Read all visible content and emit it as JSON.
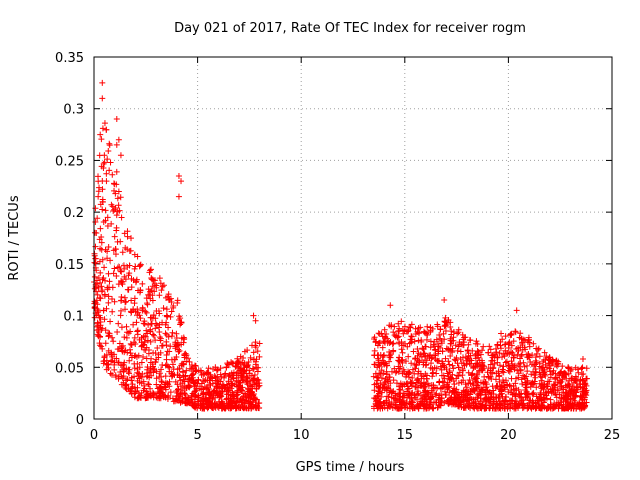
{
  "chart_data": {
    "type": "scatter",
    "title": "Day 021 of 2017, Rate Of TEC Index for receiver rogm",
    "xlabel": "GPS time / hours",
    "ylabel": "ROTI / TECUs",
    "xlim": [
      0,
      25
    ],
    "ylim": [
      0,
      0.35
    ],
    "xticks": [
      "0",
      "5",
      "10",
      "15",
      "20",
      "25"
    ],
    "yticks": [
      "0",
      "0.05",
      "0.1",
      "0.15",
      "0.2",
      "0.25",
      "0.3",
      "0.35"
    ],
    "grid": true,
    "marker": "+",
    "color": "#ff0000",
    "segments": [
      {
        "x": [
          0.0,
          8.0
        ],
        "bands": [
          [
            0.0,
            0.1,
            0.2
          ],
          [
            0.5,
            0.05,
            0.3
          ],
          [
            1.0,
            0.04,
            0.25
          ],
          [
            1.5,
            0.03,
            0.2
          ],
          [
            2.0,
            0.02,
            0.16
          ],
          [
            2.5,
            0.02,
            0.15
          ],
          [
            3.0,
            0.02,
            0.14
          ],
          [
            3.5,
            0.02,
            0.13
          ],
          [
            4.0,
            0.015,
            0.12
          ],
          [
            4.5,
            0.015,
            0.06
          ],
          [
            5.0,
            0.01,
            0.05
          ],
          [
            6.0,
            0.01,
            0.05
          ],
          [
            7.0,
            0.01,
            0.06
          ],
          [
            8.0,
            0.01,
            0.08
          ]
        ]
      },
      {
        "x": [
          13.5,
          23.8
        ],
        "bands": [
          [
            13.5,
            0.01,
            0.08
          ],
          [
            14.5,
            0.01,
            0.1
          ],
          [
            15.5,
            0.01,
            0.09
          ],
          [
            16.5,
            0.01,
            0.09
          ],
          [
            17.0,
            0.015,
            0.1
          ],
          [
            18.0,
            0.01,
            0.08
          ],
          [
            19.0,
            0.01,
            0.07
          ],
          [
            20.0,
            0.01,
            0.09
          ],
          [
            21.0,
            0.01,
            0.08
          ],
          [
            22.0,
            0.01,
            0.06
          ],
          [
            23.0,
            0.01,
            0.05
          ],
          [
            23.8,
            0.01,
            0.05
          ]
        ]
      }
    ],
    "outliers": [
      [
        0.4,
        0.325
      ],
      [
        0.4,
        0.31
      ],
      [
        0.3,
        0.275
      ],
      [
        0.5,
        0.255
      ],
      [
        0.6,
        0.23
      ],
      [
        1.1,
        0.29
      ],
      [
        1.2,
        0.27
      ],
      [
        1.1,
        0.265
      ],
      [
        1.3,
        0.255
      ],
      [
        1.2,
        0.22
      ],
      [
        0.2,
        0.215
      ],
      [
        4.1,
        0.235
      ],
      [
        4.2,
        0.23
      ],
      [
        4.1,
        0.215
      ],
      [
        7.7,
        0.1
      ],
      [
        7.8,
        0.095
      ],
      [
        14.3,
        0.11
      ],
      [
        16.9,
        0.115
      ],
      [
        20.4,
        0.105
      ],
      [
        23.6,
        0.058
      ]
    ]
  }
}
